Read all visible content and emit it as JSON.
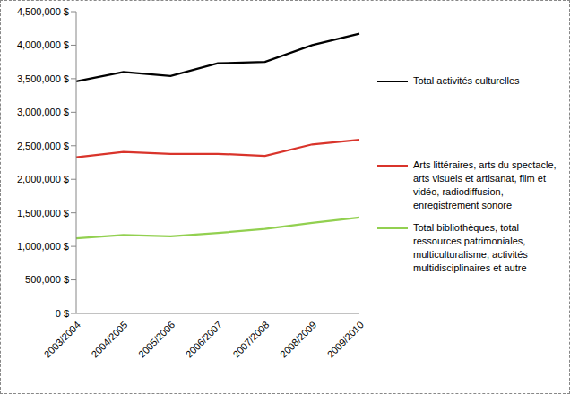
{
  "chart_data": {
    "type": "line",
    "categories": [
      "2003/2004",
      "2004/2005",
      "2005/2006",
      "2006/2007",
      "2007/2008",
      "2008/2009",
      "2009/2010"
    ],
    "series": [
      {
        "name": "Total activités culturelles",
        "color": "#000000",
        "values": [
          3460000,
          3600000,
          3540000,
          3730000,
          3750000,
          4000000,
          4170000
        ]
      },
      {
        "name": "Arts littéraires, arts du spectacle, arts visuels et artisanat, film et vidéo, radiodiffusion, enregistrement sonore",
        "color": "#d9342b",
        "values": [
          2330000,
          2410000,
          2380000,
          2380000,
          2350000,
          2520000,
          2590000
        ]
      },
      {
        "name": "Total bibliothèques, total ressources patrimoniales, multiculturalisme, activités multidisciplinaires et autre",
        "color": "#92d050",
        "values": [
          1120000,
          1170000,
          1150000,
          1200000,
          1260000,
          1350000,
          1430000
        ]
      }
    ],
    "ylim": [
      0,
      4500000
    ],
    "yticks": [
      {
        "value": 0,
        "label": "0 $"
      },
      {
        "value": 500000,
        "label": "500,000 $"
      },
      {
        "value": 1000000,
        "label": "1,000,000 $"
      },
      {
        "value": 1500000,
        "label": "1,500,000 $"
      },
      {
        "value": 2000000,
        "label": "2,000,000 $"
      },
      {
        "value": 2500000,
        "label": "2,500,000 $"
      },
      {
        "value": 3000000,
        "label": "3,000,000 $"
      },
      {
        "value": 3500000,
        "label": "3,500,000 $"
      },
      {
        "value": 4000000,
        "label": "4,000,000 $"
      },
      {
        "value": 4500000,
        "label": "4,500,000 $"
      }
    ],
    "grid": false,
    "legend": "right"
  }
}
